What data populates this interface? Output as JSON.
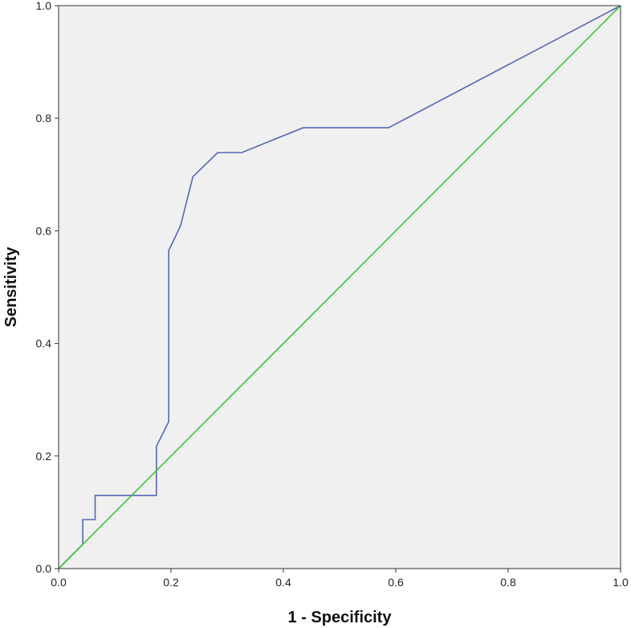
{
  "chart_data": {
    "type": "line",
    "title": "",
    "xlabel": "1 - Specificity",
    "ylabel": "Sensitivity",
    "xlim": [
      0,
      1
    ],
    "ylim": [
      0,
      1
    ],
    "x_ticks": [
      "0.0",
      "0.2",
      "0.4",
      "0.6",
      "0.8",
      "1.0"
    ],
    "y_ticks": [
      "0.0",
      "0.2",
      "0.4",
      "0.6",
      "0.8",
      "1.0"
    ],
    "x_tick_values": [
      0,
      0.2,
      0.4,
      0.6,
      0.8,
      1.0
    ],
    "y_tick_values": [
      0,
      0.2,
      0.4,
      0.6,
      0.8,
      1.0
    ],
    "grid": false,
    "legend": "none",
    "background_color": "#f0f0f0",
    "series": [
      {
        "color": "#5567b5",
        "x": [
          0.0,
          0.043,
          0.043,
          0.065,
          0.065,
          0.174,
          0.174,
          0.196,
          0.196,
          0.217,
          0.239,
          0.283,
          0.326,
          0.435,
          0.587,
          1.0
        ],
        "y": [
          0.0,
          0.043,
          0.087,
          0.087,
          0.13,
          0.13,
          0.217,
          0.261,
          0.565,
          0.609,
          0.696,
          0.739,
          0.739,
          0.783,
          0.783,
          1.0
        ]
      },
      {
        "color": "#3cc43c",
        "x": [
          0.0,
          1.0
        ],
        "y": [
          0.0,
          1.0
        ]
      }
    ]
  }
}
